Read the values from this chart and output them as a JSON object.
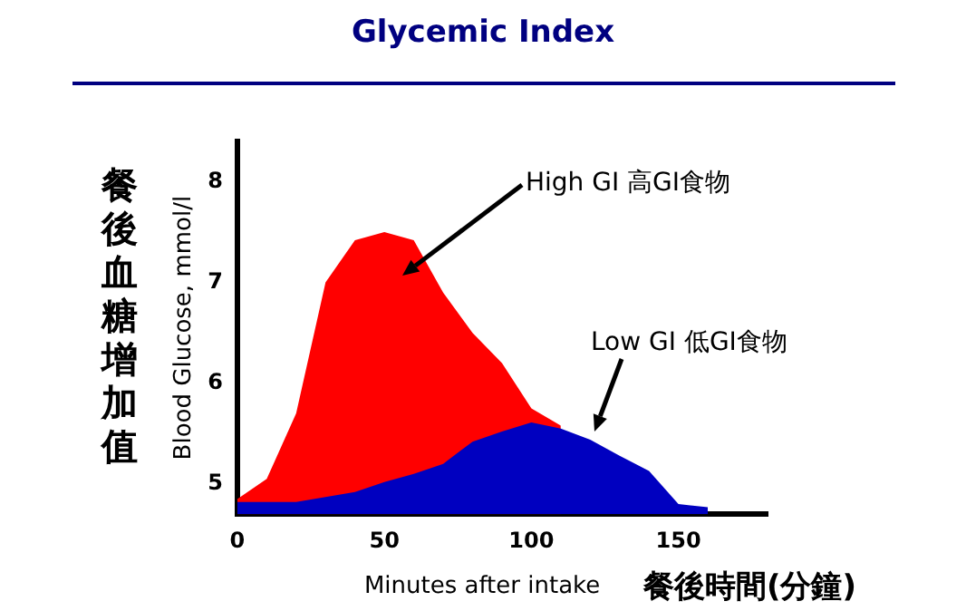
{
  "chart_data": {
    "type": "area",
    "title": "Glycemic Index",
    "ylabel": "Blood Glucose, mmol/l",
    "xlabel": "Minutes after intake",
    "x": [
      0,
      10,
      20,
      30,
      40,
      50,
      60,
      70,
      80,
      90,
      100,
      110,
      120,
      130,
      140,
      150,
      160
    ],
    "series": [
      {
        "color": "#ff0000",
        "values": [
          4.85,
          5.05,
          5.7,
          7.0,
          7.42,
          7.5,
          7.42,
          6.9,
          6.5,
          6.2,
          5.75,
          5.58,
          null,
          null,
          null,
          null,
          null
        ]
      },
      {
        "color": "#0000c0",
        "values": [
          4.82,
          4.82,
          4.82,
          4.87,
          4.92,
          5.02,
          5.1,
          5.2,
          5.42,
          5.52,
          5.61,
          5.55,
          5.44,
          5.28,
          5.13,
          4.8,
          4.77
        ]
      }
    ],
    "annotations": [
      "High GI 高GI食物",
      "Low GI 低GI食物",
      "餐後血糖增加值",
      "餐後時間(分鐘)"
    ],
    "xlim": [
      0,
      180
    ],
    "xticks": [
      0,
      50,
      100,
      150
    ],
    "ylim": [
      4.7,
      8.4
    ],
    "yticks": [
      5,
      6,
      7,
      8
    ],
    "grid": false,
    "legend": false
  }
}
